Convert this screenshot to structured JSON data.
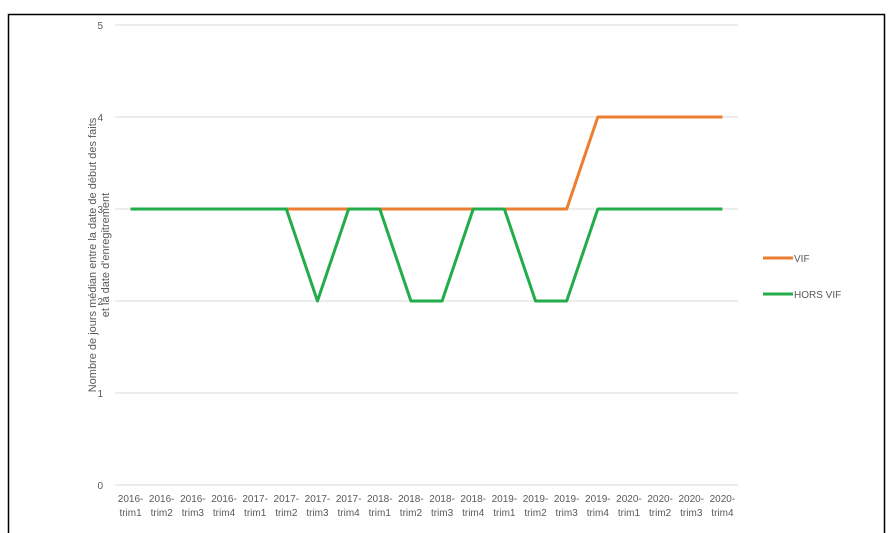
{
  "chart_data": {
    "type": "line",
    "y_label": [
      "Nombre de jours médian entre la date de début des faits",
      "et la date d'enregitrement"
    ],
    "categories": [
      "2016-trim1",
      "2016-trim2",
      "2016-trim3",
      "2016-trim4",
      "2017-trim1",
      "2017-trim2",
      "2017-trim3",
      "2017-trim4",
      "2018-trim1",
      "2018-trim2",
      "2018-trim3",
      "2018-trim4",
      "2019-trim1",
      "2019-trim2",
      "2019-trim3",
      "2019-trim4",
      "2020-trim1",
      "2020-trim2",
      "2020-trim3",
      "2020-trim4"
    ],
    "series": [
      {
        "name": "VIF",
        "color": "#ed7d31",
        "values": [
          3,
          3,
          3,
          3,
          3,
          3,
          3,
          3,
          3,
          3,
          3,
          3,
          3,
          3,
          3,
          4,
          4,
          4,
          4,
          4
        ]
      },
      {
        "name": "HORS  VIF",
        "color": "#22ac4a",
        "values": [
          3,
          3,
          3,
          3,
          3,
          3,
          2,
          3,
          3,
          2,
          2,
          3,
          3,
          2,
          2,
          3,
          3,
          3,
          3,
          3
        ]
      }
    ],
    "ylim": [
      0,
      5
    ],
    "yticks": [
      0,
      1,
      2,
      3,
      4,
      5
    ],
    "grid": true,
    "legend": "right"
  }
}
